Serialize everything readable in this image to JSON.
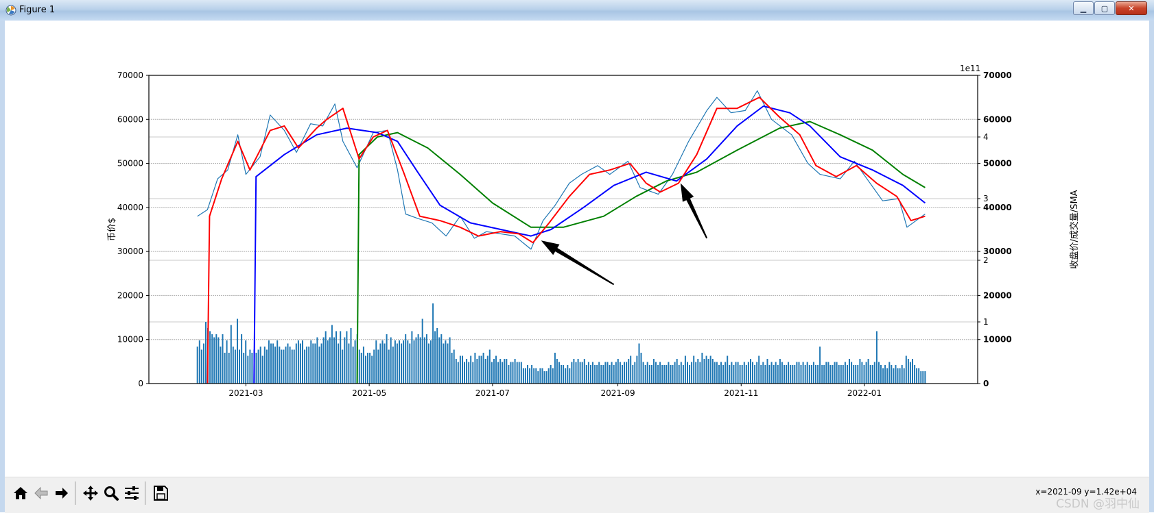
{
  "window": {
    "title": "Figure 1",
    "buttons": {
      "minimize": "▁",
      "maximize": "▢",
      "close": "✕"
    }
  },
  "icons": {
    "app": "matplotlib-figure-icon",
    "toolbar": [
      "home-icon",
      "back-icon",
      "forward-icon",
      "pan-icon",
      "zoom-icon",
      "configure-subplots-icon",
      "save-icon"
    ]
  },
  "status": {
    "coords": "x=2021-09 y=1.42e+04"
  },
  "watermark": "CSDN @羽中仙",
  "chart_data": {
    "type": "line",
    "xlabel": "",
    "ylabel": "币价$",
    "y2label": "收盘价/成交量/SMA",
    "offset_text": "1e11",
    "ylim": [
      0,
      70000
    ],
    "yticks": [
      "0",
      "10000",
      "20000",
      "30000",
      "40000",
      "50000",
      "60000",
      "70000"
    ],
    "y2ticks_price": [
      "0",
      "10000",
      "20000",
      "30000",
      "40000",
      "50000",
      "60000",
      "70000"
    ],
    "volume_ticks": [
      "1",
      "2",
      "3",
      "4"
    ],
    "volume_unit": "1e11",
    "volume_ylim": [
      0,
      5
    ],
    "xticks": [
      "2021-03",
      "2021-05",
      "2021-07",
      "2021-09",
      "2021-11",
      "2022-01"
    ],
    "grid": true,
    "colors": {
      "close": "#1f77b4",
      "sma_fast": "#ff0000",
      "sma_mid": "#0000ff",
      "sma_slow": "#008000",
      "volume": "#1f77b4",
      "arrow": "#000000"
    },
    "close_series": {
      "name": "",
      "x": [
        "2021-02-05",
        "2021-02-10",
        "2021-02-15",
        "2021-02-20",
        "2021-02-25",
        "2021-03-01",
        "2021-03-08",
        "2021-03-13",
        "2021-03-20",
        "2021-03-26",
        "2021-04-02",
        "2021-04-08",
        "2021-04-14",
        "2021-04-18",
        "2021-04-25",
        "2021-05-03",
        "2021-05-10",
        "2021-05-15",
        "2021-05-19",
        "2021-05-25",
        "2021-06-01",
        "2021-06-08",
        "2021-06-15",
        "2021-06-22",
        "2021-06-28",
        "2021-07-05",
        "2021-07-12",
        "2021-07-20",
        "2021-07-26",
        "2021-08-01",
        "2021-08-08",
        "2021-08-14",
        "2021-08-22",
        "2021-08-28",
        "2021-09-06",
        "2021-09-12",
        "2021-09-21",
        "2021-09-28",
        "2021-10-06",
        "2021-10-15",
        "2021-10-20",
        "2021-10-27",
        "2021-11-03",
        "2021-11-09",
        "2021-11-16",
        "2021-11-26",
        "2021-12-04",
        "2021-12-10",
        "2021-12-20",
        "2021-12-27",
        "2022-01-03",
        "2022-01-10",
        "2022-01-18",
        "2022-01-22",
        "2022-01-31"
      ],
      "values": [
        38000,
        39500,
        46500,
        48500,
        56500,
        47500,
        51500,
        61000,
        57500,
        52500,
        59000,
        58500,
        63500,
        55000,
        49000,
        57000,
        57500,
        48500,
        38500,
        37500,
        36500,
        33500,
        38000,
        33000,
        34500,
        34000,
        33500,
        30500,
        37000,
        40500,
        45500,
        47500,
        49500,
        47500,
        50500,
        44500,
        43000,
        47500,
        55000,
        62000,
        65000,
        61500,
        62000,
        66500,
        60000,
        56500,
        50000,
        47500,
        46500,
        50500,
        46000,
        41500,
        42000,
        35500,
        38500
      ]
    },
    "sma_fast": {
      "x": [
        "2021-02-10",
        "2021-02-11",
        "2021-02-17",
        "2021-02-25",
        "2021-03-03",
        "2021-03-13",
        "2021-03-20",
        "2021-03-27",
        "2021-04-05",
        "2021-04-10",
        "2021-04-18",
        "2021-04-26",
        "2021-05-03",
        "2021-05-10",
        "2021-05-18",
        "2021-05-26",
        "2021-06-05",
        "2021-06-15",
        "2021-06-24",
        "2021-07-05",
        "2021-07-14",
        "2021-07-21",
        "2021-07-29",
        "2021-08-08",
        "2021-08-18",
        "2021-08-28",
        "2021-09-07",
        "2021-09-15",
        "2021-09-22",
        "2021-10-01",
        "2021-10-10",
        "2021-10-20",
        "2021-10-30",
        "2021-11-10",
        "2021-11-20",
        "2021-11-30",
        "2021-12-08",
        "2021-12-18",
        "2021-12-28",
        "2022-01-07",
        "2022-01-17",
        "2022-01-24",
        "2022-01-31"
      ],
      "values": [
        0,
        38000,
        46500,
        55000,
        48500,
        57500,
        58500,
        53500,
        58000,
        60000,
        62500,
        51000,
        56000,
        57500,
        48000,
        38000,
        37000,
        35500,
        33500,
        34500,
        34000,
        32000,
        36500,
        42500,
        47500,
        48500,
        50000,
        45500,
        43500,
        45500,
        52000,
        62500,
        62500,
        65000,
        60500,
        56500,
        49500,
        47000,
        49500,
        45500,
        42500,
        37000,
        38000
      ]
    },
    "sma_mid": {
      "x": [
        "2021-03-05",
        "2021-03-06",
        "2021-03-20",
        "2021-04-05",
        "2021-04-20",
        "2021-05-05",
        "2021-05-15",
        "2021-05-25",
        "2021-06-05",
        "2021-06-20",
        "2021-07-05",
        "2021-07-20",
        "2021-07-30",
        "2021-08-15",
        "2021-08-30",
        "2021-09-15",
        "2021-09-30",
        "2021-10-15",
        "2021-10-30",
        "2021-11-12",
        "2021-11-25",
        "2021-12-05",
        "2021-12-20",
        "2022-01-05",
        "2022-01-20",
        "2022-01-31"
      ],
      "values": [
        0,
        47000,
        52000,
        56500,
        58000,
        57000,
        55000,
        48000,
        40500,
        36500,
        35000,
        33500,
        35000,
        40000,
        45000,
        48000,
        46000,
        51000,
        58500,
        63000,
        61500,
        58500,
        51500,
        48500,
        45000,
        41000
      ]
    },
    "sma_slow": {
      "x": [
        "2021-04-25",
        "2021-04-26",
        "2021-05-05",
        "2021-05-15",
        "2021-05-30",
        "2021-06-15",
        "2021-07-01",
        "2021-07-20",
        "2021-08-05",
        "2021-08-25",
        "2021-09-10",
        "2021-09-25",
        "2021-10-10",
        "2021-10-30",
        "2021-11-20",
        "2021-12-05",
        "2021-12-20",
        "2022-01-05",
        "2022-01-20",
        "2022-01-31"
      ],
      "values": [
        0,
        52000,
        56000,
        57000,
        53500,
        47500,
        41000,
        35500,
        35500,
        38000,
        42500,
        46000,
        48000,
        53000,
        58000,
        59500,
        56500,
        53000,
        47500,
        44500
      ]
    },
    "volume_series": {
      "x_start": "2021-02-05",
      "x_end": "2022-01-31",
      "values_1e11": [
        0.6,
        0.7,
        0.55,
        0.65,
        1.0,
        0.9,
        0.85,
        0.8,
        0.75,
        0.8,
        0.75,
        0.6,
        0.8,
        0.5,
        0.7,
        0.5,
        0.95,
        0.6,
        0.55,
        1.05,
        0.55,
        0.8,
        0.5,
        0.7,
        0.45,
        0.55,
        0.5,
        0.55,
        0.5,
        0.55,
        0.6,
        0.45,
        0.6,
        0.55,
        0.7,
        0.65,
        0.65,
        0.6,
        0.7,
        0.6,
        0.55,
        0.55,
        0.6,
        0.65,
        0.6,
        0.55,
        0.55,
        0.65,
        0.7,
        0.65,
        0.7,
        0.55,
        0.6,
        0.6,
        0.7,
        0.65,
        0.65,
        0.75,
        0.6,
        0.65,
        0.75,
        0.85,
        0.7,
        0.75,
        0.95,
        0.75,
        0.85,
        0.65,
        0.85,
        0.55,
        0.75,
        0.85,
        0.65,
        0.9,
        0.6,
        0.7,
        0.8,
        0.55,
        0.5,
        0.6,
        0.45,
        0.5,
        0.5,
        0.45,
        0.55,
        0.7,
        0.55,
        0.65,
        0.7,
        0.65,
        0.8,
        0.55,
        0.75,
        0.6,
        0.7,
        0.65,
        0.7,
        0.65,
        0.7,
        0.8,
        0.7,
        0.65,
        0.85,
        0.7,
        0.75,
        0.8,
        0.75,
        1.05,
        0.75,
        0.8,
        0.65,
        0.7,
        1.3,
        0.85,
        0.9,
        0.75,
        0.8,
        0.65,
        0.7,
        0.65,
        0.75,
        0.5,
        0.55,
        0.4,
        0.35,
        0.45,
        0.45,
        0.35,
        0.4,
        0.35,
        0.45,
        0.35,
        0.5,
        0.4,
        0.45,
        0.45,
        0.5,
        0.4,
        0.45,
        0.55,
        0.35,
        0.4,
        0.45,
        0.35,
        0.4,
        0.35,
        0.4,
        0.4,
        0.3,
        0.35,
        0.35,
        0.4,
        0.35,
        0.35,
        0.35,
        0.25,
        0.25,
        0.3,
        0.25,
        0.3,
        0.25,
        0.25,
        0.2,
        0.25,
        0.25,
        0.2,
        0.2,
        0.25,
        0.3,
        0.25,
        0.5,
        0.4,
        0.35,
        0.3,
        0.3,
        0.25,
        0.3,
        0.25,
        0.35,
        0.4,
        0.35,
        0.4,
        0.35,
        0.35,
        0.4,
        0.3,
        0.35,
        0.3,
        0.35,
        0.3,
        0.3,
        0.35,
        0.3,
        0.3,
        0.35,
        0.35,
        0.3,
        0.35,
        0.3,
        0.35,
        0.4,
        0.35,
        0.3,
        0.35,
        0.35,
        0.4,
        0.45,
        0.3,
        0.35,
        0.45,
        0.65,
        0.5,
        0.35,
        0.3,
        0.35,
        0.3,
        0.3,
        0.4,
        0.35,
        0.3,
        0.35,
        0.3,
        0.3,
        0.3,
        0.35,
        0.3,
        0.3,
        0.35,
        0.4,
        0.3,
        0.35,
        0.3,
        0.45,
        0.35,
        0.3,
        0.35,
        0.45,
        0.35,
        0.4,
        0.35,
        0.5,
        0.4,
        0.45,
        0.4,
        0.45,
        0.4,
        0.35,
        0.35,
        0.3,
        0.35,
        0.3,
        0.35,
        0.45,
        0.3,
        0.35,
        0.3,
        0.35,
        0.35,
        0.3,
        0.3,
        0.35,
        0.3,
        0.35,
        0.4,
        0.35,
        0.3,
        0.35,
        0.45,
        0.3,
        0.35,
        0.3,
        0.4,
        0.3,
        0.35,
        0.3,
        0.35,
        0.3,
        0.4,
        0.35,
        0.3,
        0.3,
        0.35,
        0.3,
        0.3,
        0.3,
        0.35,
        0.35,
        0.3,
        0.35,
        0.3,
        0.35,
        0.3,
        0.3,
        0.35,
        0.3,
        0.3,
        0.6,
        0.3,
        0.3,
        0.35,
        0.35,
        0.3,
        0.3,
        0.35,
        0.35,
        0.3,
        0.3,
        0.3,
        0.35,
        0.3,
        0.4,
        0.35,
        0.3,
        0.3,
        0.3,
        0.4,
        0.35,
        0.3,
        0.35,
        0.4,
        0.3,
        0.3,
        0.35,
        0.85,
        0.35,
        0.3,
        0.25,
        0.3,
        0.25,
        0.35,
        0.3,
        0.25,
        0.3,
        0.25,
        0.25,
        0.3,
        0.25,
        0.45,
        0.4,
        0.35,
        0.4,
        0.3,
        0.25,
        0.25,
        0.2,
        0.2,
        0.2
      ]
    },
    "annotations": [
      {
        "type": "arrow",
        "from": [
          "2021-08-30",
          22500
        ],
        "to": [
          "2021-07-25",
          32500
        ]
      },
      {
        "type": "arrow",
        "from": [
          "2021-10-15",
          33000
        ],
        "to": [
          "2021-10-02",
          45500
        ]
      }
    ]
  }
}
